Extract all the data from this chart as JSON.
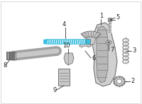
{
  "bg_color": "#ffffff",
  "cyan": "#3bbfe0",
  "gray_light": "#c8c8c8",
  "gray_mid": "#a0a0a0",
  "gray_dark": "#707070",
  "black": "#222222",
  "figsize": [
    2.0,
    1.47
  ],
  "dpi": 100,
  "border_color": "#cccccc"
}
